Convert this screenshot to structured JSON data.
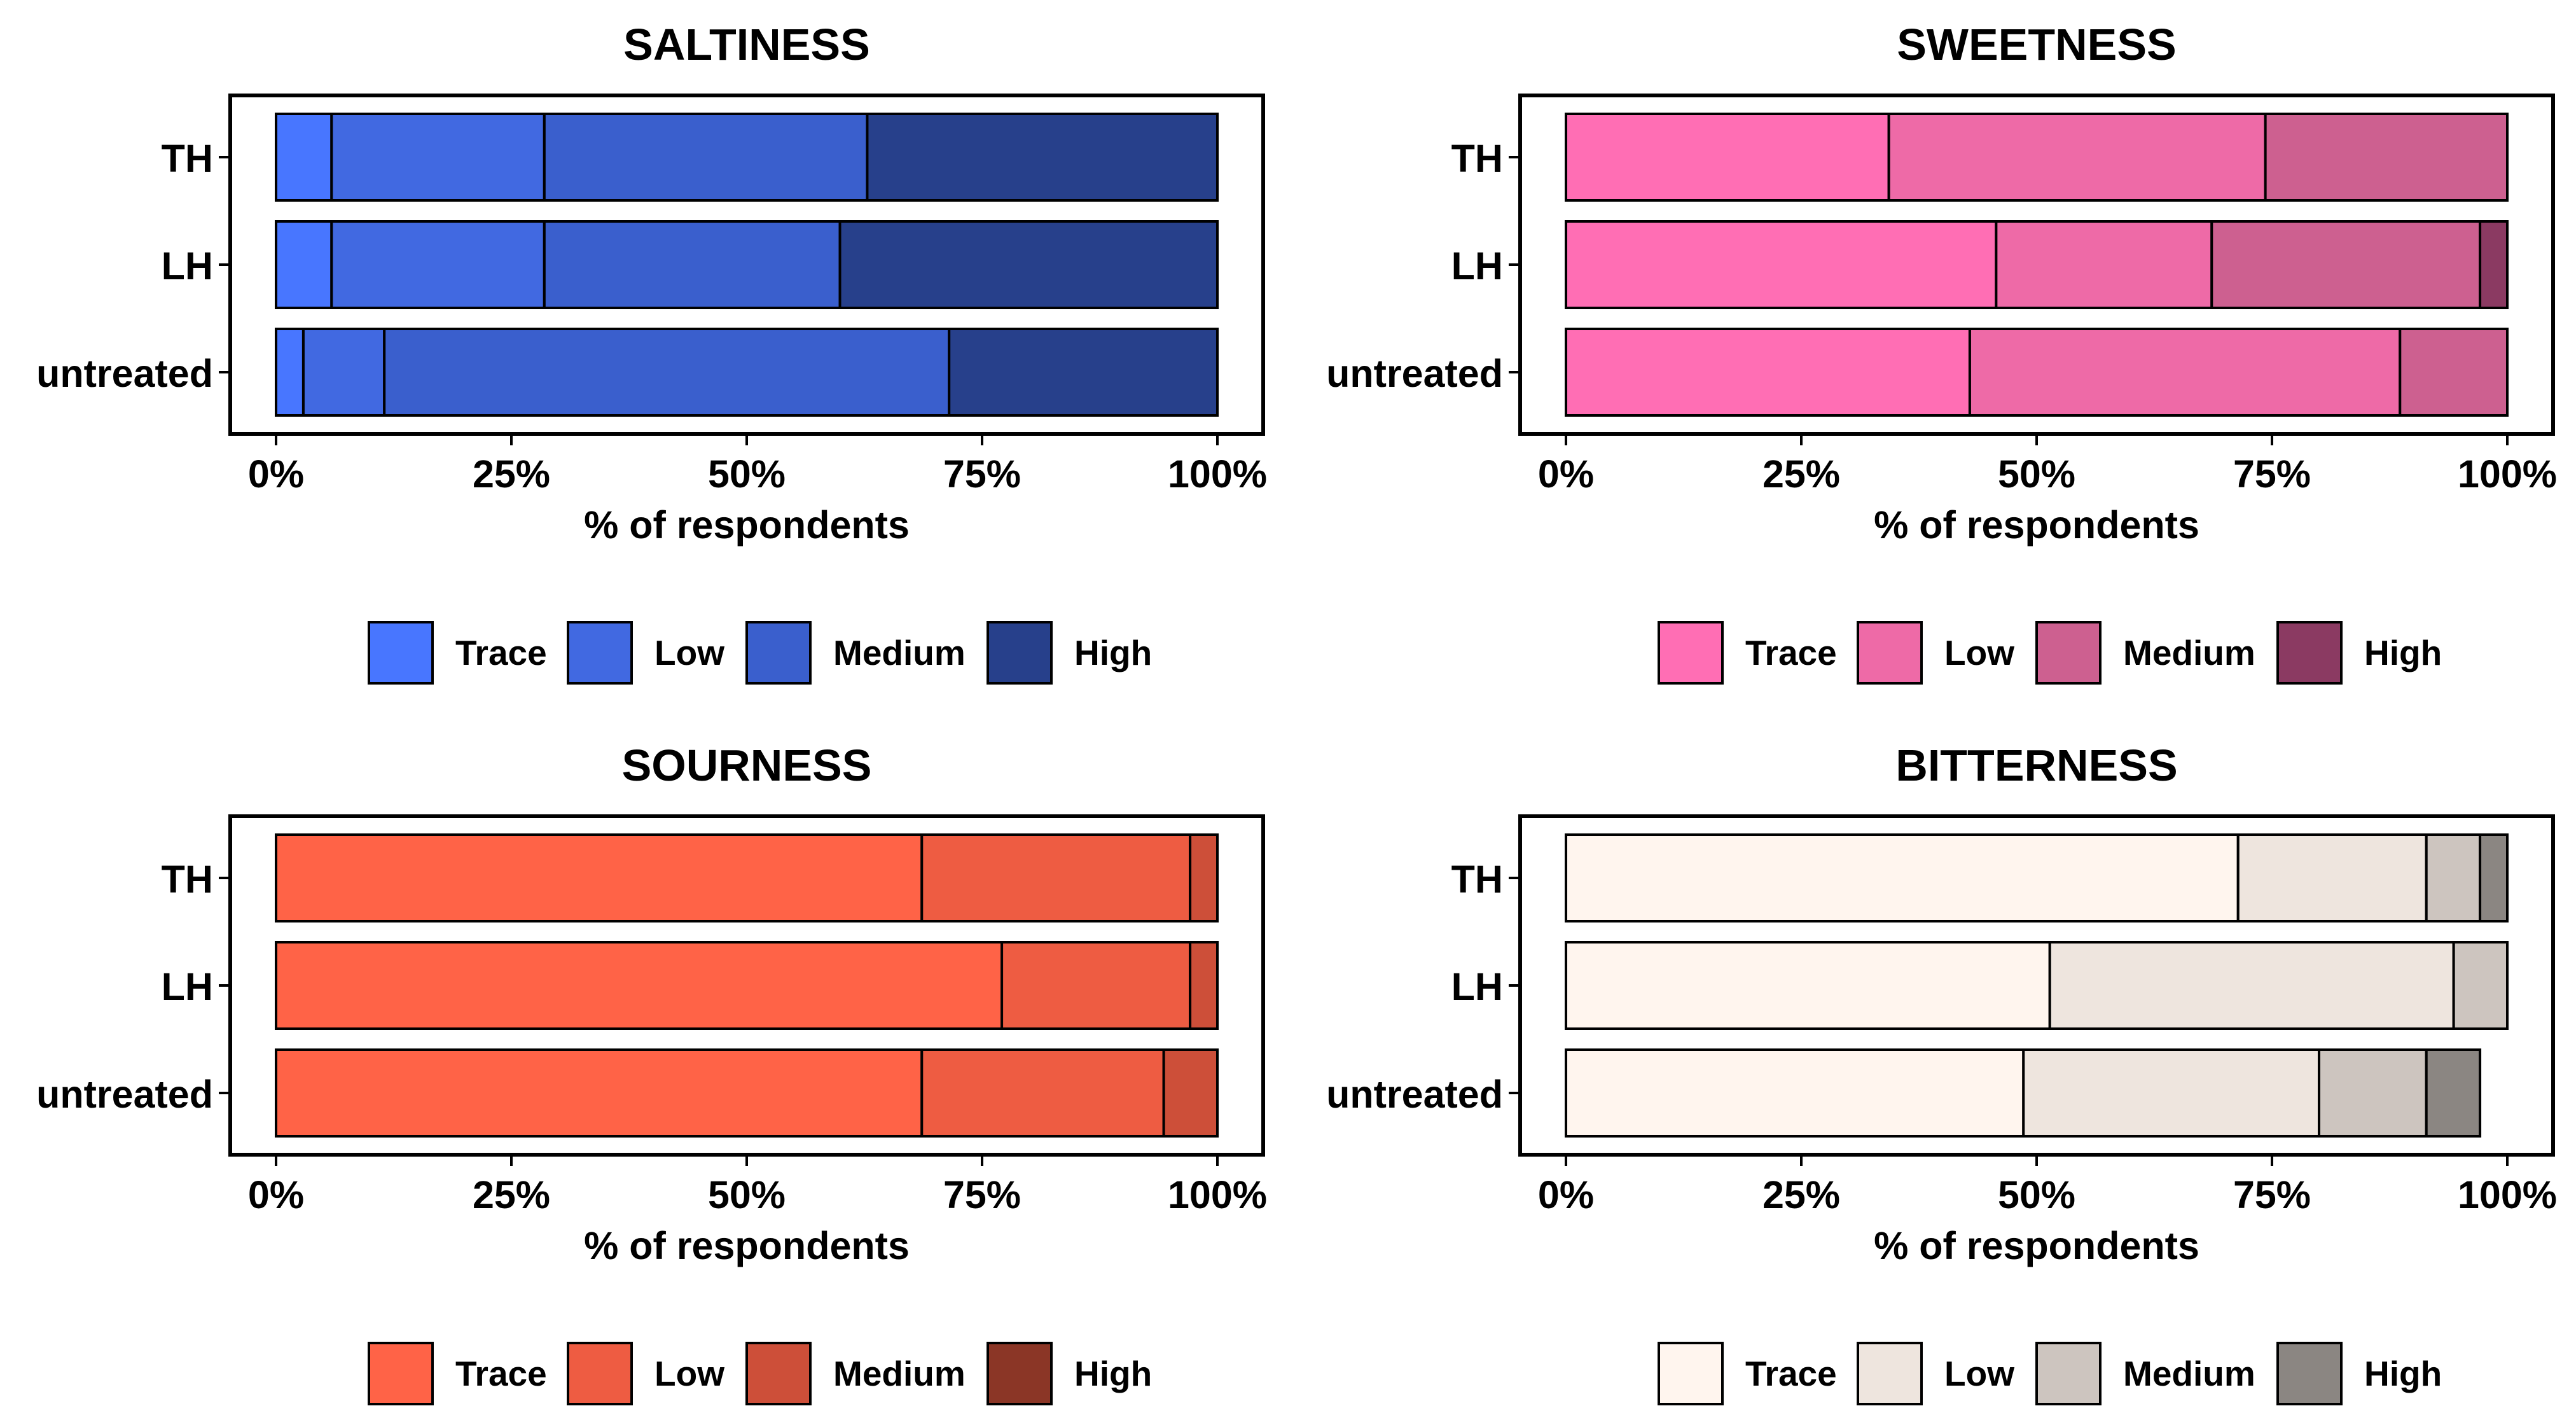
{
  "chart_data": [
    {
      "type": "bar",
      "orientation": "horizontal",
      "stacked": true,
      "title": "SALTINESS",
      "xlabel": "% of respondents",
      "ylabel": "",
      "xlim": [
        0,
        100
      ],
      "xticks": [
        "0%",
        "25%",
        "50%",
        "75%",
        "100%"
      ],
      "categories": [
        "TH",
        "LH",
        "untreated"
      ],
      "series": [
        {
          "name": "Trace",
          "color": "#4876FF",
          "values": [
            5.9,
            5.9,
            2.9
          ]
        },
        {
          "name": "Low",
          "color": "#4169E1",
          "values": [
            22.6,
            22.6,
            8.6
          ]
        },
        {
          "name": "Medium",
          "color": "#3A5FCD",
          "values": [
            34.3,
            31.4,
            60.0
          ]
        },
        {
          "name": "High",
          "color": "#27408B",
          "values": [
            37.2,
            40.1,
            28.5
          ]
        }
      ],
      "legend": "bottom"
    },
    {
      "type": "bar",
      "orientation": "horizontal",
      "stacked": true,
      "title": "SWEETNESS",
      "xlabel": "% of respondents",
      "ylabel": "",
      "xlim": [
        0,
        100
      ],
      "xticks": [
        "0%",
        "25%",
        "50%",
        "75%",
        "100%"
      ],
      "categories": [
        "TH",
        "LH",
        "untreated"
      ],
      "series": [
        {
          "name": "Trace",
          "color": "#FF6EB4",
          "values": [
            34.3,
            45.7,
            42.9
          ]
        },
        {
          "name": "Low",
          "color": "#EE6AA7",
          "values": [
            40.0,
            22.9,
            45.7
          ]
        },
        {
          "name": "Medium",
          "color": "#CD6090",
          "values": [
            25.7,
            28.5,
            11.4
          ]
        },
        {
          "name": "High",
          "color": "#8B3A62",
          "values": [
            0,
            2.9,
            0
          ]
        }
      ],
      "legend": "bottom"
    },
    {
      "type": "bar",
      "orientation": "horizontal",
      "stacked": true,
      "title": "SOURNESS",
      "xlabel": "% of respondents",
      "ylabel": "",
      "xlim": [
        0,
        100
      ],
      "xticks": [
        "0%",
        "25%",
        "50%",
        "75%",
        "100%"
      ],
      "categories": [
        "TH",
        "LH",
        "untreated"
      ],
      "series": [
        {
          "name": "Trace",
          "color": "#FF6347",
          "values": [
            68.6,
            77.1,
            68.6
          ]
        },
        {
          "name": "Low",
          "color": "#EE5C42",
          "values": [
            28.5,
            20.0,
            25.7
          ]
        },
        {
          "name": "Medium",
          "color": "#CD4F39",
          "values": [
            2.9,
            2.9,
            5.7
          ]
        },
        {
          "name": "High",
          "color": "#8B3626",
          "values": [
            0,
            0,
            0
          ]
        }
      ],
      "legend": "bottom"
    },
    {
      "type": "bar",
      "orientation": "horizontal",
      "stacked": true,
      "title": "BITTERNESS",
      "xlabel": "% of respondents",
      "ylabel": "",
      "xlim": [
        0,
        100
      ],
      "xticks": [
        "0%",
        "25%",
        "50%",
        "75%",
        "100%"
      ],
      "categories": [
        "TH",
        "LH",
        "untreated"
      ],
      "series": [
        {
          "name": "Trace",
          "color": "#FFF5EE",
          "values": [
            71.4,
            51.4,
            48.6
          ]
        },
        {
          "name": "Low",
          "color": "#EEE5DE",
          "values": [
            20.0,
            42.9,
            31.4
          ]
        },
        {
          "name": "Medium",
          "color": "#CDC5BF",
          "values": [
            5.7,
            5.7,
            11.4
          ]
        },
        {
          "name": "High",
          "color": "#8B8682",
          "values": [
            2.9,
            0,
            5.7
          ]
        }
      ],
      "legend": "bottom"
    }
  ]
}
